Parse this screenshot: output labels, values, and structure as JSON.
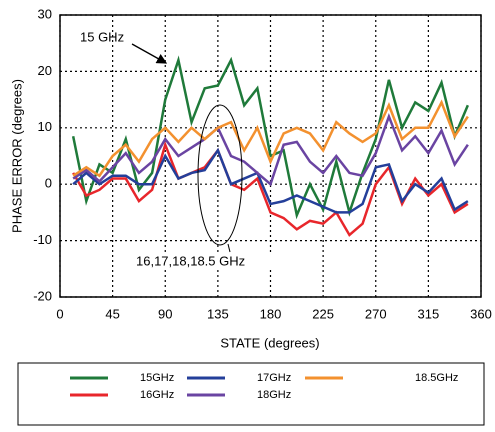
{
  "chart_data": {
    "type": "line",
    "xlabel": "STATE (degrees)",
    "ylabel": "PHASE ERROR  (degrees)",
    "x": [
      11.25,
      22.5,
      33.75,
      45,
      56.25,
      67.5,
      78.75,
      90,
      101.25,
      112.5,
      123.75,
      135,
      146.25,
      157.5,
      168.75,
      180,
      191.25,
      202.5,
      213.75,
      225,
      236.25,
      247.5,
      258.75,
      270,
      281.25,
      292.5,
      303.75,
      315,
      326.25,
      337.5,
      348.75
    ],
    "xlim": [
      0,
      360
    ],
    "xticks": [
      0,
      45,
      90,
      135,
      180,
      225,
      270,
      315,
      360
    ],
    "ylim": [
      -20,
      30
    ],
    "yticks": [
      -20,
      -10,
      0,
      10,
      20,
      30
    ],
    "grid": true,
    "annotations": [
      "15 GHz",
      "16,17,18,18.5 GHz"
    ],
    "series": [
      {
        "name": "15GHz",
        "color": "#1f7a3a",
        "values": [
          8.5,
          -3,
          3.5,
          2,
          8,
          -1,
          2,
          15,
          22,
          11,
          17,
          17.5,
          22,
          14,
          17,
          5,
          6,
          -5.5,
          0,
          -4.5,
          4,
          -5,
          2,
          8,
          18.5,
          10,
          14.5,
          13,
          18,
          8.5,
          14
        ]
      },
      {
        "name": "16GHz",
        "color": "#e8262b",
        "values": [
          2,
          -2,
          -1,
          1,
          1,
          -3,
          -1,
          7,
          1,
          2,
          3,
          6,
          0,
          -1,
          1,
          -5,
          -6,
          -8,
          -6.5,
          -7,
          -5,
          -9,
          -7,
          0,
          3,
          -3.5,
          1,
          -2,
          0,
          -5,
          -3.5
        ]
      },
      {
        "name": "17GHz",
        "color": "#243f9a",
        "values": [
          0,
          2,
          0,
          1.5,
          1.5,
          0,
          0,
          5,
          1,
          2,
          2.5,
          6,
          0,
          1,
          2,
          -3.5,
          -3,
          -2,
          -3,
          -4,
          -5,
          -5,
          -3.5,
          3,
          3.5,
          -3,
          0,
          -1.5,
          1,
          -4.5,
          -3
        ]
      },
      {
        "name": "18GHz",
        "color": "#6a44a2",
        "values": [
          1,
          2.5,
          0.5,
          3,
          5.5,
          2,
          4,
          8,
          5,
          6.5,
          8,
          10,
          5,
          4,
          2,
          0,
          7,
          7.5,
          4,
          2,
          5,
          2,
          1.5,
          5.5,
          12,
          6,
          8.5,
          5.5,
          9.5,
          3.5,
          7
        ]
      },
      {
        "name": "18.5GHz",
        "color": "#f3912f",
        "values": [
          1.5,
          3,
          1.5,
          5,
          7,
          4,
          8,
          10,
          7.5,
          10,
          8,
          10,
          11,
          6,
          10,
          4,
          9,
          10,
          9,
          6,
          11,
          9,
          7.5,
          9,
          14,
          8,
          10,
          10,
          14.5,
          8.5,
          12
        ]
      }
    ]
  }
}
